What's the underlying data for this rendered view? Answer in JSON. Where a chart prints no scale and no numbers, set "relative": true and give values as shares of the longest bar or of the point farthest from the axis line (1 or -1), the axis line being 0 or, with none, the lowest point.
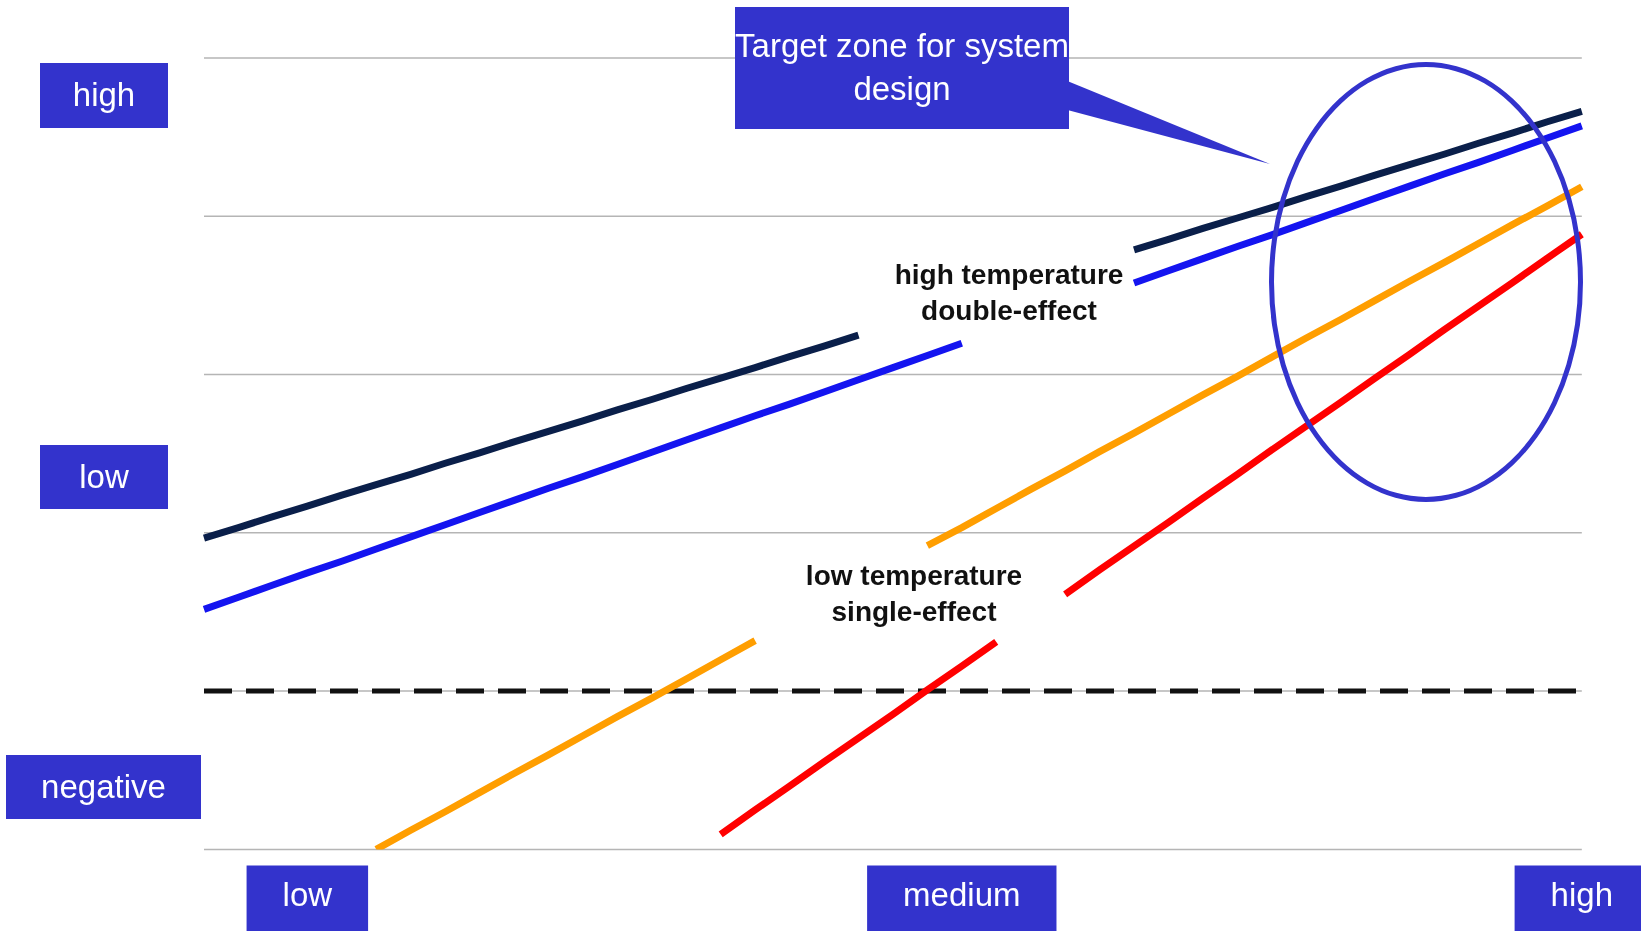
{
  "chart_data": {
    "type": "line",
    "relative": true,
    "annotations": [
      "high temperature\ndouble-effect",
      "low temperature\nsingle-effect",
      "Target zone for system design",
      "high",
      "low",
      "negative"
    ],
    "categories": [
      null,
      null,
      null,
      "low",
      null,
      null,
      null,
      null,
      null,
      null,
      null,
      null,
      null,
      null,
      null,
      null,
      null,
      null,
      null,
      null,
      null,
      null,
      "medium",
      null,
      null,
      null,
      null,
      null,
      null,
      null,
      null,
      null,
      null,
      null,
      null,
      null,
      null,
      null,
      null,
      null,
      "high"
    ],
    "grid": "y",
    "legend": false,
    "marker": "none",
    "line_style": "solid",
    "ref_lines": [
      {
        "axis": "y",
        "value": 0,
        "color": "#111111",
        "line_style": "dashed"
      }
    ],
    "series": [
      {
        "color": "#0a1f4a",
        "values": [
          0.264,
          0.282,
          0.301,
          0.319,
          0.338,
          0.356,
          0.374,
          0.393,
          0.411,
          0.43,
          0.448,
          0.466,
          0.485,
          0.503,
          0.522,
          0.54,
          0.558,
          0.577,
          0.595,
          0.614,
          null,
          null,
          null,
          null,
          null,
          null,
          null,
          0.761,
          0.779,
          0.798,
          0.816,
          0.834,
          0.853,
          0.871,
          0.89,
          0.908,
          0.926,
          0.945,
          0.963,
          0.982,
          1.0
        ]
      },
      {
        "color": "#1414f0",
        "values": [
          0.141,
          0.162,
          0.183,
          0.204,
          0.224,
          0.245,
          0.266,
          0.287,
          0.308,
          0.329,
          0.35,
          0.37,
          0.391,
          0.412,
          0.433,
          0.454,
          0.475,
          0.495,
          0.516,
          0.537,
          0.558,
          0.579,
          0.6,
          null,
          null,
          null,
          null,
          0.704,
          0.725,
          0.746,
          0.767,
          0.787,
          0.808,
          0.829,
          0.85,
          0.871,
          0.892,
          0.912,
          0.933,
          0.954,
          0.975
        ]
      },
      {
        "color": "#ff9e00",
        "values": [
          null,
          null,
          null,
          null,
          null,
          -0.273,
          -0.24,
          -0.208,
          -0.175,
          -0.142,
          -0.11,
          -0.077,
          -0.044,
          -0.012,
          0.021,
          0.054,
          0.087,
          null,
          null,
          null,
          null,
          0.251,
          0.282,
          0.315,
          0.348,
          0.38,
          0.413,
          0.445,
          0.478,
          0.511,
          0.543,
          0.576,
          0.609,
          0.641,
          0.674,
          0.707,
          0.739,
          0.772,
          0.805,
          0.837,
          0.87
        ]
      },
      {
        "color": "#ff0000",
        "values": [
          null,
          null,
          null,
          null,
          null,
          null,
          null,
          null,
          null,
          null,
          null,
          null,
          null,
          null,
          null,
          -0.247,
          -0.205,
          -0.164,
          -0.122,
          -0.081,
          -0.04,
          0.002,
          0.043,
          0.085,
          null,
          0.167,
          0.209,
          0.25,
          0.291,
          0.333,
          0.374,
          0.416,
          0.457,
          0.498,
          0.54,
          0.581,
          0.623,
          0.664,
          0.705,
          0.747,
          0.788
        ]
      }
    ]
  }
}
